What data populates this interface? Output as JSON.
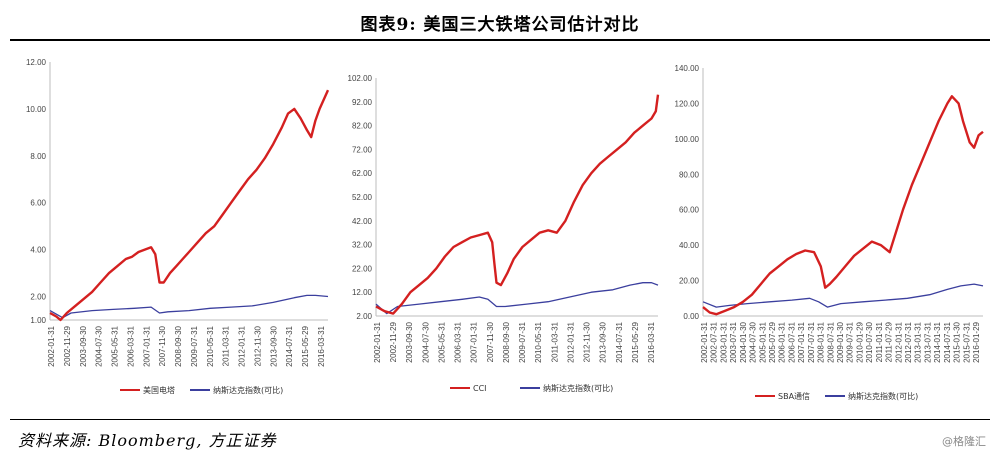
{
  "header": {
    "title": "图表9:  美国三大铁塔公司估计对比"
  },
  "footer": {
    "source": "资料来源: Bloomberg, 方正证券",
    "watermark": "@格隆汇"
  },
  "colors": {
    "company": "#d42020",
    "index": "#3b3f9e"
  },
  "chart_data": [
    {
      "type": "line",
      "ylim": [
        1,
        12
      ],
      "yticks": [
        "1.00",
        "2.00",
        "4.00",
        "6.00",
        "8.00",
        "10.00",
        "12.00"
      ],
      "ytick_values": [
        1,
        2,
        4,
        6,
        8,
        10,
        12
      ],
      "xticks": [
        "2002-01-31",
        "2002-11-29",
        "2003-09-30",
        "2004-07-30",
        "2005-05-31",
        "2006-03-31",
        "2007-01-31",
        "2007-11-30",
        "2008-09-30",
        "2009-07-31",
        "2010-05-31",
        "2011-03-31",
        "2012-01-31",
        "2012-11-30",
        "2013-09-30",
        "2014-07-31",
        "2015-05-29",
        "2016-03-31"
      ],
      "series": [
        {
          "name": "美国电塔",
          "color": "#d42020",
          "points": [
            [
              0,
              1.3
            ],
            [
              3,
              1.15
            ],
            [
              5,
              1.0
            ],
            [
              8,
              1.3
            ],
            [
              12,
              1.6
            ],
            [
              16,
              1.9
            ],
            [
              20,
              2.2
            ],
            [
              24,
              2.6
            ],
            [
              28,
              3.0
            ],
            [
              32,
              3.3
            ],
            [
              36,
              3.6
            ],
            [
              39,
              3.7
            ],
            [
              42,
              3.9
            ],
            [
              45,
              4.0
            ],
            [
              48,
              4.1
            ],
            [
              50,
              3.8
            ],
            [
              51,
              3.2
            ],
            [
              52,
              2.6
            ],
            [
              54,
              2.6
            ],
            [
              57,
              3.0
            ],
            [
              60,
              3.3
            ],
            [
              63,
              3.6
            ],
            [
              66,
              3.9
            ],
            [
              70,
              4.3
            ],
            [
              74,
              4.7
            ],
            [
              78,
              5.0
            ],
            [
              82,
              5.5
            ],
            [
              86,
              6.0
            ],
            [
              90,
              6.5
            ],
            [
              94,
              7.0
            ],
            [
              98,
              7.4
            ],
            [
              102,
              7.9
            ],
            [
              106,
              8.5
            ],
            [
              110,
              9.2
            ],
            [
              113,
              9.8
            ],
            [
              116,
              10.0
            ],
            [
              119,
              9.6
            ],
            [
              122,
              9.1
            ],
            [
              124,
              8.8
            ],
            [
              126,
              9.5
            ],
            [
              128,
              10.0
            ],
            [
              130,
              10.4
            ],
            [
              132,
              10.8
            ]
          ]
        },
        {
          "name": "纳斯达克指数(可比)",
          "color": "#3b3f9e",
          "points": [
            [
              0,
              1.4
            ],
            [
              4,
              1.2
            ],
            [
              6,
              1.1
            ],
            [
              10,
              1.3
            ],
            [
              20,
              1.4
            ],
            [
              30,
              1.45
            ],
            [
              40,
              1.5
            ],
            [
              48,
              1.55
            ],
            [
              52,
              1.3
            ],
            [
              56,
              1.35
            ],
            [
              66,
              1.4
            ],
            [
              76,
              1.5
            ],
            [
              86,
              1.55
            ],
            [
              96,
              1.6
            ],
            [
              106,
              1.75
            ],
            [
              116,
              1.95
            ],
            [
              122,
              2.05
            ],
            [
              126,
              2.05
            ],
            [
              132,
              2.0
            ]
          ]
        }
      ]
    },
    {
      "type": "line",
      "ylim": [
        2,
        102
      ],
      "yticks": [
        "2.00",
        "12.00",
        "22.00",
        "32.00",
        "42.00",
        "52.00",
        "62.00",
        "72.00",
        "82.00",
        "92.00",
        "102.00"
      ],
      "ytick_values": [
        2,
        12,
        22,
        32,
        42,
        52,
        62,
        72,
        82,
        92,
        102
      ],
      "xticks": [
        "2002-01-31",
        "2002-11-29",
        "2003-09-30",
        "2004-07-30",
        "2005-05-31",
        "2006-03-31",
        "2007-01-31",
        "2007-11-30",
        "2008-09-30",
        "2009-07-31",
        "2010-05-31",
        "2011-03-31",
        "2012-01-31",
        "2012-11-30",
        "2013-09-30",
        "2014-07-31",
        "2015-05-29",
        "2016-03-31"
      ],
      "series": [
        {
          "name": "CCI",
          "color": "#d42020",
          "points": [
            [
              0,
              6
            ],
            [
              4,
              4
            ],
            [
              8,
              3
            ],
            [
              12,
              7
            ],
            [
              16,
              12
            ],
            [
              20,
              15
            ],
            [
              24,
              18
            ],
            [
              28,
              22
            ],
            [
              32,
              27
            ],
            [
              36,
              31
            ],
            [
              40,
              33
            ],
            [
              44,
              35
            ],
            [
              48,
              36
            ],
            [
              52,
              37
            ],
            [
              54,
              33
            ],
            [
              55,
              24
            ],
            [
              56,
              16
            ],
            [
              58,
              15
            ],
            [
              61,
              20
            ],
            [
              64,
              26
            ],
            [
              68,
              31
            ],
            [
              72,
              34
            ],
            [
              76,
              37
            ],
            [
              80,
              38
            ],
            [
              84,
              37
            ],
            [
              88,
              42
            ],
            [
              92,
              50
            ],
            [
              96,
              57
            ],
            [
              100,
              62
            ],
            [
              104,
              66
            ],
            [
              108,
              69
            ],
            [
              112,
              72
            ],
            [
              116,
              75
            ],
            [
              120,
              79
            ],
            [
              124,
              82
            ],
            [
              128,
              85
            ],
            [
              130,
              88
            ],
            [
              131,
              95
            ]
          ]
        },
        {
          "name": "纳斯达克指数(可比)",
          "color": "#3b3f9e",
          "points": [
            [
              0,
              7
            ],
            [
              5,
              3
            ],
            [
              10,
              6
            ],
            [
              20,
              7
            ],
            [
              30,
              8
            ],
            [
              40,
              9
            ],
            [
              48,
              10
            ],
            [
              52,
              9
            ],
            [
              56,
              6
            ],
            [
              60,
              6
            ],
            [
              70,
              7
            ],
            [
              80,
              8
            ],
            [
              90,
              10
            ],
            [
              100,
              12
            ],
            [
              110,
              13
            ],
            [
              118,
              15
            ],
            [
              124,
              16
            ],
            [
              128,
              16
            ],
            [
              131,
              15
            ]
          ]
        }
      ]
    },
    {
      "type": "line",
      "ylim": [
        0,
        140
      ],
      "yticks": [
        "0.00",
        "20.00",
        "40.00",
        "60.00",
        "80.00",
        "100.00",
        "120.00",
        "140.00"
      ],
      "ytick_values": [
        0,
        20,
        40,
        60,
        80,
        100,
        120,
        140
      ],
      "xticks": [
        "2002-01-31",
        "2002-07-31",
        "2003-01-31",
        "2003-07-31",
        "2004-01-30",
        "2004-07-30",
        "2005-01-31",
        "2005-07-29",
        "2006-01-31",
        "2006-07-31",
        "2007-01-31",
        "2007-07-31",
        "2008-01-31",
        "2008-07-31",
        "2009-01-30",
        "2009-07-31",
        "2010-01-29",
        "2010-07-30",
        "2011-01-31",
        "2011-07-29",
        "2012-01-31",
        "2012-07-31",
        "2013-01-31",
        "2013-07-31",
        "2014-01-31",
        "2014-07-31",
        "2015-01-30",
        "2015-07-31",
        "2016-01-29"
      ],
      "series": [
        {
          "name": "SBA通信",
          "color": "#d42020",
          "points": [
            [
              0,
              5
            ],
            [
              3,
              2
            ],
            [
              6,
              1
            ],
            [
              10,
              3
            ],
            [
              14,
              5
            ],
            [
              18,
              8
            ],
            [
              22,
              12
            ],
            [
              26,
              18
            ],
            [
              30,
              24
            ],
            [
              34,
              28
            ],
            [
              38,
              32
            ],
            [
              42,
              35
            ],
            [
              46,
              37
            ],
            [
              50,
              36
            ],
            [
              53,
              28
            ],
            [
              55,
              16
            ],
            [
              57,
              18
            ],
            [
              60,
              22
            ],
            [
              64,
              28
            ],
            [
              68,
              34
            ],
            [
              72,
              38
            ],
            [
              76,
              42
            ],
            [
              80,
              40
            ],
            [
              84,
              36
            ],
            [
              86,
              44
            ],
            [
              90,
              60
            ],
            [
              94,
              74
            ],
            [
              98,
              86
            ],
            [
              102,
              98
            ],
            [
              106,
              110
            ],
            [
              110,
              120
            ],
            [
              112,
              124
            ],
            [
              115,
              120
            ],
            [
              117,
              110
            ],
            [
              120,
              98
            ],
            [
              122,
              95
            ],
            [
              124,
              102
            ],
            [
              126,
              104
            ]
          ]
        },
        {
          "name": "纳斯达克指数(可比)",
          "color": "#3b3f9e",
          "points": [
            [
              0,
              8
            ],
            [
              6,
              5
            ],
            [
              12,
              6
            ],
            [
              20,
              7
            ],
            [
              30,
              8
            ],
            [
              40,
              9
            ],
            [
              48,
              10
            ],
            [
              52,
              8
            ],
            [
              56,
              5
            ],
            [
              62,
              7
            ],
            [
              72,
              8
            ],
            [
              82,
              9
            ],
            [
              92,
              10
            ],
            [
              102,
              12
            ],
            [
              110,
              15
            ],
            [
              116,
              17
            ],
            [
              122,
              18
            ],
            [
              126,
              17
            ]
          ]
        }
      ]
    }
  ]
}
